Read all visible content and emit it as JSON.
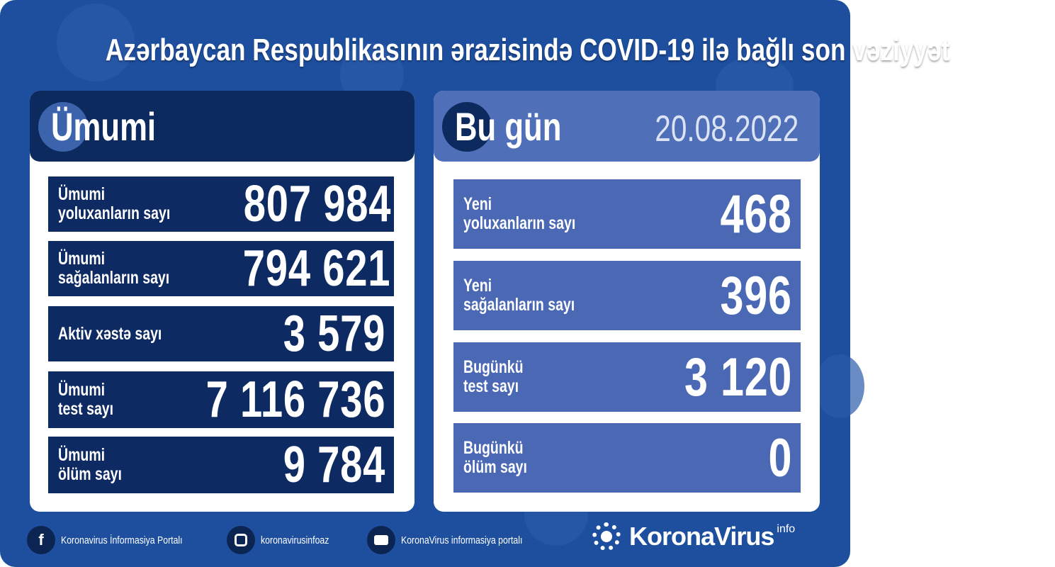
{
  "title": "Azərbaycan Respublikasının ərazisində COVID-19 ilə bağlı son vəziyyət",
  "colors": {
    "background": "#1e4f9f",
    "left_header": "#0c2a5e",
    "left_rows": "#0d2a63",
    "right_header": "#4f6fb9",
    "right_rows": "#4a68b4"
  },
  "total": {
    "heading": "Ümumi",
    "rows": [
      {
        "label1": "Ümumi",
        "label2": "yoluxanların sayı",
        "value": "807 984"
      },
      {
        "label1": "Ümumi",
        "label2": "sağalanların sayı",
        "value": "794 621"
      },
      {
        "label1": "Aktiv xəstə sayı",
        "label2": "",
        "value": "3 579"
      },
      {
        "label1": "Ümumi",
        "label2": "test sayı",
        "value": "7 116 736"
      },
      {
        "label1": "Ümumi",
        "label2": "ölüm sayı",
        "value": "9 784"
      }
    ]
  },
  "today": {
    "heading": "Bu gün",
    "date": "20.08.2022",
    "rows": [
      {
        "label1": "Yeni",
        "label2": "yoluxanların sayı",
        "value": "468"
      },
      {
        "label1": "Yeni",
        "label2": "sağalanların sayı",
        "value": "396"
      },
      {
        "label1": "Bugünkü",
        "label2": "test sayı",
        "value": "3 120"
      },
      {
        "label1": "Bugünkü",
        "label2": "ölüm sayı",
        "value": "0"
      }
    ]
  },
  "footer": {
    "facebook": {
      "icon": "facebook-icon",
      "label": "Koronavirus İnformasiya Portalı"
    },
    "instagram": {
      "icon": "instagram-icon",
      "label": "koronavirusinfoaz"
    },
    "youtube": {
      "icon": "youtube-icon",
      "label": "KoronaVirus informasiya portalı"
    },
    "logo": {
      "name": "KoronaVirus",
      "sup": "info"
    }
  }
}
